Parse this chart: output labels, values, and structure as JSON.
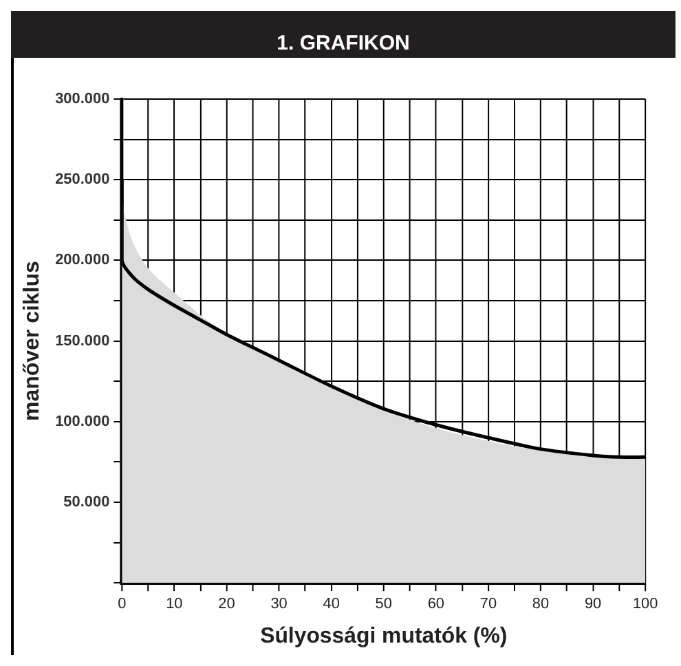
{
  "chart_data": {
    "type": "line",
    "title": "1. GRAFIKON",
    "xlabel": "Súlyossági mutatók (%)",
    "ylabel": "manőver ciklus",
    "series": [
      {
        "type": "area",
        "color": "#dcdcdd",
        "x": [
          0,
          2,
          5,
          10,
          15,
          20,
          30,
          40,
          50,
          60,
          70,
          80,
          90,
          100
        ],
        "values": [
          235000,
          212000,
          195000,
          180000,
          166000,
          154000,
          137000,
          121000,
          107000,
          96000,
          88000,
          82000,
          78000,
          77000
        ]
      },
      {
        "type": "line",
        "color": "#000000",
        "x": [
          0,
          0,
          2,
          5,
          10,
          15,
          20,
          25,
          30,
          40,
          50,
          60,
          70,
          80,
          90,
          95,
          100
        ],
        "values": [
          250000,
          200000,
          190000,
          182000,
          172000,
          163000,
          154000,
          146000,
          138000,
          122000,
          108000,
          98000,
          90000,
          83000,
          79000,
          78000,
          78000
        ]
      }
    ],
    "xlim": [
      0,
      100
    ],
    "xticks": [
      0,
      {
        "value": 5,
        "label": null
      },
      10,
      {
        "value": 15,
        "label": null
      },
      20,
      {
        "value": 25,
        "label": null
      },
      30,
      {
        "value": 35,
        "label": null
      },
      40,
      {
        "value": 45,
        "label": null
      },
      50,
      {
        "value": 55,
        "label": null
      },
      60,
      {
        "value": 65,
        "label": null
      },
      70,
      {
        "value": 75,
        "label": null
      },
      80,
      {
        "value": 85,
        "label": null
      },
      90,
      {
        "value": 95,
        "label": null
      },
      100
    ],
    "ylim": [
      0,
      300000
    ],
    "yticks": [
      {
        "value": 0,
        "label": null
      },
      {
        "value": 25000,
        "label": null
      },
      {
        "value": 50000,
        "label": "50.000"
      },
      {
        "value": 75000,
        "label": null
      },
      {
        "value": 100000,
        "label": "100.000"
      },
      {
        "value": 125000,
        "label": null
      },
      {
        "value": 150000,
        "label": "150.000"
      },
      {
        "value": 175000,
        "label": null
      },
      {
        "value": 200000,
        "label": "200.000"
      },
      {
        "value": 225000,
        "label": null
      },
      {
        "value": 250000,
        "label": "250.000"
      },
      {
        "value": 275000,
        "label": null
      },
      {
        "value": 300000,
        "label": "300.000"
      }
    ],
    "grid": true
  }
}
